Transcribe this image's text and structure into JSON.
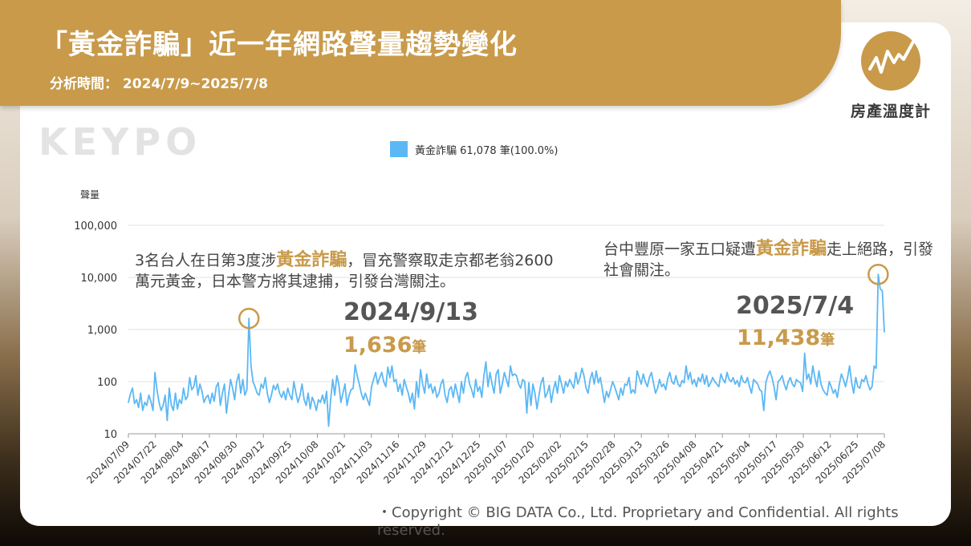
{
  "header": {
    "title": "「黃金詐騙」近一年網路聲量趨勢變化",
    "subtitle": "分析時間： 2024/7/9~2025/7/8"
  },
  "brand": {
    "name": "房產溫度計",
    "watermark": "KEYPO",
    "icon": "trend-line-icon"
  },
  "colors": {
    "accent": "#c89a4a",
    "series": "#5bb8f5"
  },
  "annotations": {
    "left": {
      "before": "3名台人在日第3度涉",
      "highlight": "黃金詐騙",
      "after": "，冒充警察取走京都老翁2600萬元黃金，日本警方將其逮捕，引發台灣關注。",
      "date": "2024/9/13",
      "value": "1,636",
      "unit": "筆"
    },
    "right": {
      "before": "台中豐原一家五口疑遭",
      "highlight": "黃金詐騙",
      "after": "走上絕路，引發社會關注。",
      "date": "2025/7/4",
      "value": "11,438",
      "unit": "筆"
    }
  },
  "footer": {
    "copyright": "・Copyright © BIG DATA Co., Ltd. Proprietary and Confidential. All rights reserved."
  },
  "chart_data": {
    "type": "line",
    "title": "",
    "ylabel": "聲量",
    "yscale": "log",
    "ylim": [
      10,
      100000
    ],
    "yticks": [
      "10",
      "100",
      "1,000",
      "10,000",
      "100,000"
    ],
    "grid": "horizontal",
    "legend_position": "top-center",
    "series": [
      {
        "name": "黃金詐騙 61,078 筆(100.0%)",
        "total": 61078,
        "share": "100.0%",
        "color": "#5bb8f5"
      }
    ],
    "x_tick_labels": [
      "2024/07/09",
      "2024/07/22",
      "2024/08/04",
      "2024/08/17",
      "2024/08/30",
      "2024/09/12",
      "2024/09/25",
      "2024/10/08",
      "2024/10/21",
      "2024/11/03",
      "2024/11/16",
      "2024/11/29",
      "2024/12/12",
      "2024/12/25",
      "2025/01/07",
      "2025/01/20",
      "2025/02/02",
      "2025/02/15",
      "2025/02/28",
      "2025/03/13",
      "2025/03/26",
      "2025/04/08",
      "2025/04/21",
      "2025/05/04",
      "2025/05/17",
      "2025/05/30",
      "2025/06/12",
      "2025/06/25",
      "2025/07/08"
    ],
    "x_start": "2024/07/09",
    "x_end": "2025/07/08",
    "values": [
      40,
      58,
      75,
      38,
      45,
      32,
      60,
      28,
      40,
      35,
      55,
      42,
      28,
      150,
      70,
      40,
      28,
      35,
      55,
      18,
      75,
      35,
      28,
      60,
      30,
      45,
      38,
      75,
      45,
      52,
      120,
      70,
      80,
      130,
      55,
      90,
      65,
      40,
      50,
      55,
      38,
      60,
      42,
      80,
      95,
      35,
      60,
      90,
      25,
      55,
      110,
      75,
      45,
      100,
      140,
      60,
      110,
      55,
      70,
      1636,
      200,
      100,
      80,
      60,
      55,
      90,
      75,
      120,
      60,
      40,
      55,
      85,
      70,
      90,
      60,
      50,
      65,
      45,
      75,
      55,
      45,
      100,
      60,
      40,
      55,
      90,
      45,
      35,
      60,
      30,
      50,
      40,
      28,
      45,
      40,
      55,
      38,
      65,
      14,
      45,
      110,
      55,
      130,
      90,
      40,
      60,
      90,
      35,
      55,
      70,
      75,
      210,
      130,
      90,
      60,
      45,
      60,
      45,
      35,
      80,
      110,
      150,
      90,
      120,
      150,
      100,
      80,
      190,
      120,
      200,
      100,
      110,
      65,
      90,
      55,
      110,
      80,
      60,
      40,
      60,
      30,
      100,
      50,
      170,
      90,
      60,
      140,
      75,
      90,
      60,
      80,
      50,
      60,
      90,
      110,
      55,
      40,
      70,
      80,
      50,
      90,
      60,
      40,
      100,
      60,
      120,
      150,
      90,
      70,
      50,
      110,
      65,
      80,
      50,
      130,
      240,
      80,
      150,
      90,
      60,
      140,
      170,
      60,
      90,
      150,
      110,
      80,
      200,
      130,
      140,
      130,
      90,
      75,
      110,
      100,
      25,
      95,
      35,
      90,
      60,
      30,
      55,
      95,
      120,
      50,
      60,
      85,
      40,
      70,
      100,
      60,
      130,
      90,
      60,
      100,
      80,
      110,
      90,
      75,
      150,
      90,
      120,
      180,
      130,
      75,
      60,
      110,
      150,
      90,
      160,
      95,
      120,
      70,
      40,
      65,
      50,
      70,
      100,
      80,
      60,
      45,
      75,
      55,
      90,
      85,
      120,
      60,
      70,
      60,
      160,
      120,
      90,
      140,
      100,
      80,
      120,
      150,
      95,
      60,
      75,
      110,
      80,
      90,
      70,
      115,
      150,
      100,
      90,
      130,
      90,
      80,
      105,
      95,
      200,
      110,
      150,
      90,
      110,
      80,
      120,
      100,
      140,
      90,
      130,
      80,
      95,
      120,
      100,
      90,
      80,
      140,
      110,
      95,
      150,
      110,
      100,
      120,
      90,
      105,
      80,
      130,
      100,
      95,
      120,
      80,
      60,
      110,
      100,
      90,
      70,
      65,
      28,
      95,
      130,
      160,
      120,
      80,
      45,
      100,
      110,
      130,
      90,
      70,
      100,
      120,
      90,
      80,
      110,
      100,
      95,
      65,
      350,
      110,
      140,
      90,
      200,
      120,
      80,
      160,
      90,
      70,
      60,
      55,
      100,
      80,
      60,
      70,
      50,
      90,
      140,
      110,
      80,
      120,
      200,
      95,
      60,
      120,
      80,
      75,
      110,
      100,
      130,
      90,
      70,
      80,
      200,
      180,
      11438,
      6000,
      5500,
      900
    ]
  }
}
